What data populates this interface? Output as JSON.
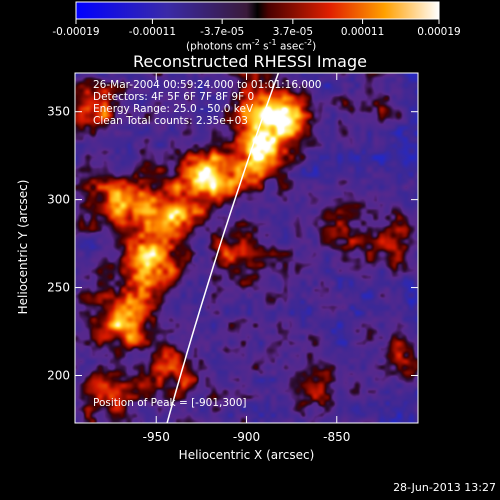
{
  "colorbar": {
    "ticks": [
      -0.00019,
      -0.00011,
      -3.7e-05,
      3.7e-05,
      0.00011,
      0.00019
    ],
    "tick_labels": [
      "-0.00019",
      "-0.00011",
      "-3.7e-05",
      "3.7e-05",
      "0.00011",
      "0.00019"
    ],
    "unit_label_base": "(photons cm",
    "unit_label_sup1": "-2",
    "unit_label_mid": " s",
    "unit_label_sup2": "-1",
    "unit_label_end": " asec",
    "unit_label_sup3": "-2",
    "unit_label_close": ")",
    "range": [
      -0.00019,
      0.00019
    ]
  },
  "chart_data": {
    "type": "heatmap",
    "title": "Reconstructed RHESSI Image",
    "xlabel": "Heliocentric X (arcsec)",
    "ylabel": "Heliocentric Y (arcsec)",
    "xlim": [
      -995,
      -805
    ],
    "ylim": [
      173,
      372
    ],
    "x_ticks": [
      -950,
      -900,
      -850
    ],
    "x_tick_labels": [
      "-950",
      "-900",
      "-850"
    ],
    "y_ticks": [
      200,
      250,
      300,
      350
    ],
    "y_tick_labels": [
      "200",
      "250",
      "300",
      "350"
    ],
    "limb_color": "#ffffff",
    "peak_position": [
      -901,
      300
    ],
    "annotations": {
      "time": "26-Mar-2004 00:59:24.000 to 01:01:16.000",
      "detectors": "Detectors: 4F 5F 6F 7F 8F 9F 0",
      "energy": "Energy Range: 25.0 - 50.0 keV",
      "clean": "Clean     Total counts: 2.35e+03",
      "peak": "Position of Peak = [-901,300]"
    },
    "emission_sources": [
      {
        "x": -922,
        "y": 312,
        "strength": 1.0
      },
      {
        "x": -955,
        "y": 262,
        "strength": 0.95
      },
      {
        "x": -968,
        "y": 232,
        "strength": 0.85
      },
      {
        "x": -970,
        "y": 300,
        "strength": 0.8
      },
      {
        "x": -945,
        "y": 290,
        "strength": 0.85
      },
      {
        "x": -895,
        "y": 325,
        "strength": 0.8
      },
      {
        "x": -880,
        "y": 345,
        "strength": 0.85
      },
      {
        "x": -905,
        "y": 270,
        "strength": 0.55
      },
      {
        "x": -985,
        "y": 350,
        "strength": 0.6
      },
      {
        "x": -940,
        "y": 200,
        "strength": 0.55
      },
      {
        "x": -975,
        "y": 190,
        "strength": 0.5
      },
      {
        "x": -895,
        "y": 355,
        "strength": 0.5
      },
      {
        "x": -845,
        "y": 285,
        "strength": 0.35
      },
      {
        "x": -820,
        "y": 275,
        "strength": 0.5
      },
      {
        "x": -815,
        "y": 210,
        "strength": 0.45
      },
      {
        "x": -865,
        "y": 195,
        "strength": 0.4
      },
      {
        "x": -830,
        "y": 355,
        "strength": 0.4
      }
    ]
  },
  "footer": {
    "timestamp": "28-Jun-2013 13:27"
  }
}
